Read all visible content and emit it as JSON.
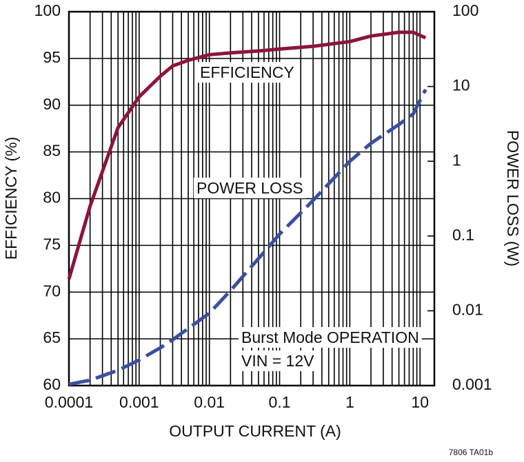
{
  "chart_data": {
    "type": "line",
    "x_label": "OUTPUT CURRENT (A)",
    "y_label": "EFFICIENCY (%)",
    "y2_label": "POWER LOSS (W)",
    "x": [
      0.0001,
      0.0002,
      0.0005,
      0.001,
      0.002,
      0.003,
      0.005,
      0.01,
      0.02,
      0.05,
      0.1,
      0.3,
      1,
      2,
      5,
      8,
      12
    ],
    "series": [
      {
        "name": "EFFICIENCY",
        "color": "#8c1538",
        "dashed": false,
        "values": [
          71.4,
          79.2,
          87.6,
          90.9,
          93.1,
          94.2,
          94.8,
          95.4,
          95.6,
          95.8,
          96.0,
          96.3,
          96.8,
          97.4,
          97.8,
          97.8,
          97.2
        ]
      },
      {
        "name": "POWER LOSS",
        "color": "#3a4f9f",
        "dashed": true,
        "axis": "y2",
        "values": [
          0.00104,
          0.00118,
          0.0016,
          0.0022,
          0.0032,
          0.0041,
          0.0058,
          0.0093,
          0.0186,
          0.05,
          0.106,
          0.3,
          1.0,
          1.74,
          3.1,
          4.3,
          9.1
        ]
      }
    ],
    "xlim": [
      0.0001,
      16
    ],
    "xticks": [
      0.0001,
      0.001,
      0.01,
      0.1,
      1,
      10
    ],
    "x_log": true,
    "ylim": [
      60,
      100
    ],
    "yticks": [
      60,
      65,
      70,
      75,
      80,
      85,
      90,
      95,
      100
    ],
    "y2lim": [
      0.001,
      100
    ],
    "y2ticks": [
      0.001,
      0.01,
      0.1,
      1,
      10,
      100
    ],
    "y2_log": true,
    "grid": true,
    "annotations": [
      "Burst Mode OPERATION",
      "VIN = 12V"
    ],
    "footnote": "7806 TA01b"
  }
}
